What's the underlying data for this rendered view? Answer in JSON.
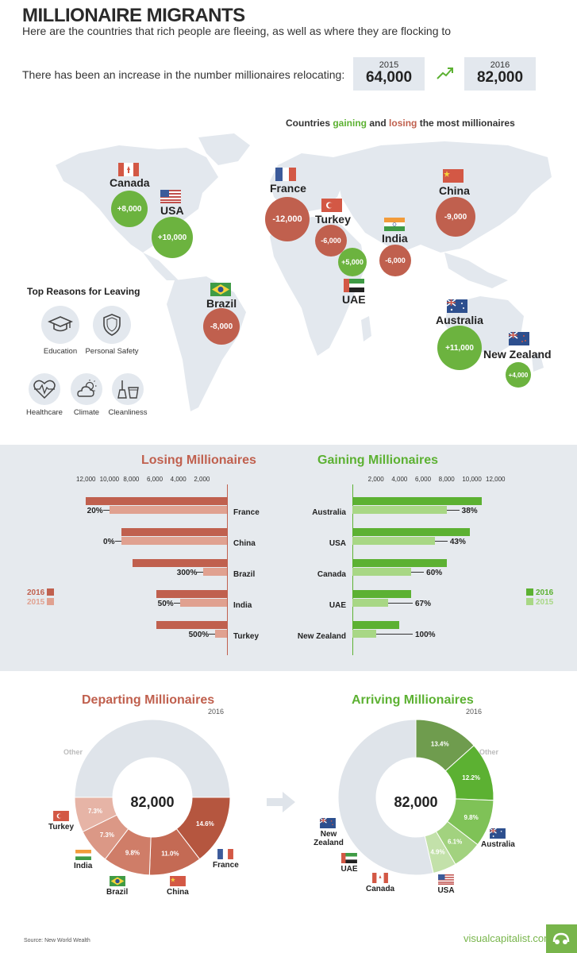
{
  "title": "MILLIONAIRE MIGRANTS",
  "subtitle": "Here are the countries that rich people are fleeing, as well as where they are flocking to",
  "increase": {
    "text": "There has been an increase in the number millionaires relocating:",
    "from": {
      "year": "2015",
      "value": "64,000"
    },
    "to": {
      "year": "2016",
      "value": "82,000"
    }
  },
  "map": {
    "heading_pre": "Countries ",
    "heading_gain": "gaining",
    "heading_mid": " and ",
    "heading_lose": "losing",
    "heading_post": " the most millionaires",
    "countries": [
      {
        "name": "Canada",
        "value": "+8,000",
        "flag": "canada-flag",
        "color": "#6cb33f"
      },
      {
        "name": "USA",
        "value": "+10,000",
        "flag": "usa-flag",
        "color": "#6cb33f"
      },
      {
        "name": "France",
        "value": "-12,000",
        "flag": "france-flag",
        "color": "#c0604e"
      },
      {
        "name": "Turkey",
        "value": "-6,000",
        "flag": "turkey-flag",
        "color": "#c0604e"
      },
      {
        "name": "UAE",
        "value": "+5,000",
        "flag": "uae-flag",
        "color": "#6cb33f"
      },
      {
        "name": "India",
        "value": "-6,000",
        "flag": "india-flag",
        "color": "#c0604e"
      },
      {
        "name": "China",
        "value": "-9,000",
        "flag": "china-flag",
        "color": "#c0604e"
      },
      {
        "name": "Brazil",
        "value": "-8,000",
        "flag": "brazil-flag",
        "color": "#c0604e"
      },
      {
        "name": "Australia",
        "value": "+11,000",
        "flag": "australia-flag",
        "color": "#6cb33f"
      },
      {
        "name": "New Zealand",
        "value": "+4,000",
        "flag": "new-zealand-flag",
        "color": "#6cb33f"
      }
    ]
  },
  "reasons": {
    "title": "Top Reasons for Leaving",
    "items": [
      {
        "label": "Education",
        "icon": "graduation-cap-icon"
      },
      {
        "label": "Personal Safety",
        "icon": "shield-icon"
      },
      {
        "label": "Healthcare",
        "icon": "heartbeat-icon"
      },
      {
        "label": "Climate",
        "icon": "sun-cloud-icon"
      },
      {
        "label": "Cleanliness",
        "icon": "cleaning-icon"
      }
    ]
  },
  "colors": {
    "red_2016": "#c0604e",
    "red_2015": "#e0a190",
    "green_2016": "#5cb132",
    "green_2015": "#a8d785",
    "map_land": "#e3e8ee"
  },
  "chart_data": [
    {
      "type": "bar",
      "title": "Losing Millionaires",
      "orientation": "horizontal-left",
      "ticks": [
        "12,000",
        "10,000",
        "8,000",
        "6,000",
        "4,000",
        "2,000"
      ],
      "xlim": [
        0,
        12000
      ],
      "legend": [
        "2016",
        "2015"
      ],
      "legend_position": "left",
      "categories": [
        "France",
        "China",
        "Brazil",
        "India",
        "Turkey"
      ],
      "series": [
        {
          "name": "2016",
          "values": [
            12000,
            9000,
            8000,
            6000,
            6000
          ]
        },
        {
          "name": "2015",
          "values": [
            10000,
            9000,
            2000,
            4000,
            1000
          ]
        }
      ],
      "change_labels": [
        "20%",
        "0%",
        "300%",
        "50%",
        "500%"
      ]
    },
    {
      "type": "bar",
      "title": "Gaining Millionaires",
      "orientation": "horizontal-right",
      "ticks": [
        "2,000",
        "4,000",
        "6,000",
        "8,000",
        "10,000",
        "12,000"
      ],
      "xlim": [
        0,
        12000
      ],
      "legend": [
        "2016",
        "2015"
      ],
      "legend_position": "right",
      "categories": [
        "Australia",
        "USA",
        "Canada",
        "UAE",
        "New Zealand"
      ],
      "series": [
        {
          "name": "2016",
          "values": [
            11000,
            10000,
            8000,
            5000,
            4000
          ]
        },
        {
          "name": "2015",
          "values": [
            8000,
            7000,
            5000,
            3000,
            2000
          ]
        }
      ],
      "change_labels": [
        "38%",
        "43%",
        "60%",
        "67%",
        "100%"
      ]
    },
    {
      "type": "pie",
      "variant": "donut",
      "title": "Departing Millionaires",
      "subtitle": "2016",
      "center": "82,000",
      "slices": [
        {
          "label": "France",
          "value": 14.6,
          "text": "14.6%",
          "color": "#b5563f"
        },
        {
          "label": "China",
          "value": 11.0,
          "text": "11.0%",
          "color": "#c46a54"
        },
        {
          "label": "Brazil",
          "value": 9.8,
          "text": "9.8%",
          "color": "#cf7d68"
        },
        {
          "label": "India",
          "value": 7.3,
          "text": "7.3%",
          "color": "#db9886"
        },
        {
          "label": "Turkey",
          "value": 7.3,
          "text": "7.3%",
          "color": "#e6b4a6"
        },
        {
          "label": "Other",
          "value": 50.0,
          "text": "",
          "color": "#dfe4ea"
        }
      ]
    },
    {
      "type": "pie",
      "variant": "donut",
      "title": "Arriving Millionaires",
      "subtitle": "2016",
      "center": "82,000",
      "slices": [
        {
          "label": "Australia",
          "value": 13.4,
          "text": "13.4%",
          "color": "#6f9c4e"
        },
        {
          "label": "USA",
          "value": 12.2,
          "text": "12.2%",
          "color": "#5cb132"
        },
        {
          "label": "Canada",
          "value": 9.8,
          "text": "9.8%",
          "color": "#7fc257"
        },
        {
          "label": "UAE",
          "value": 6.1,
          "text": "6.1%",
          "color": "#a2d27f"
        },
        {
          "label": "New Zealand",
          "value": 4.9,
          "text": "4.9%",
          "color": "#c3e1aa"
        },
        {
          "label": "Other",
          "value": 53.6,
          "text": "",
          "color": "#dfe4ea"
        }
      ]
    }
  ],
  "source": "Source: New World Wealth",
  "brand": "visualcapitalist.com"
}
